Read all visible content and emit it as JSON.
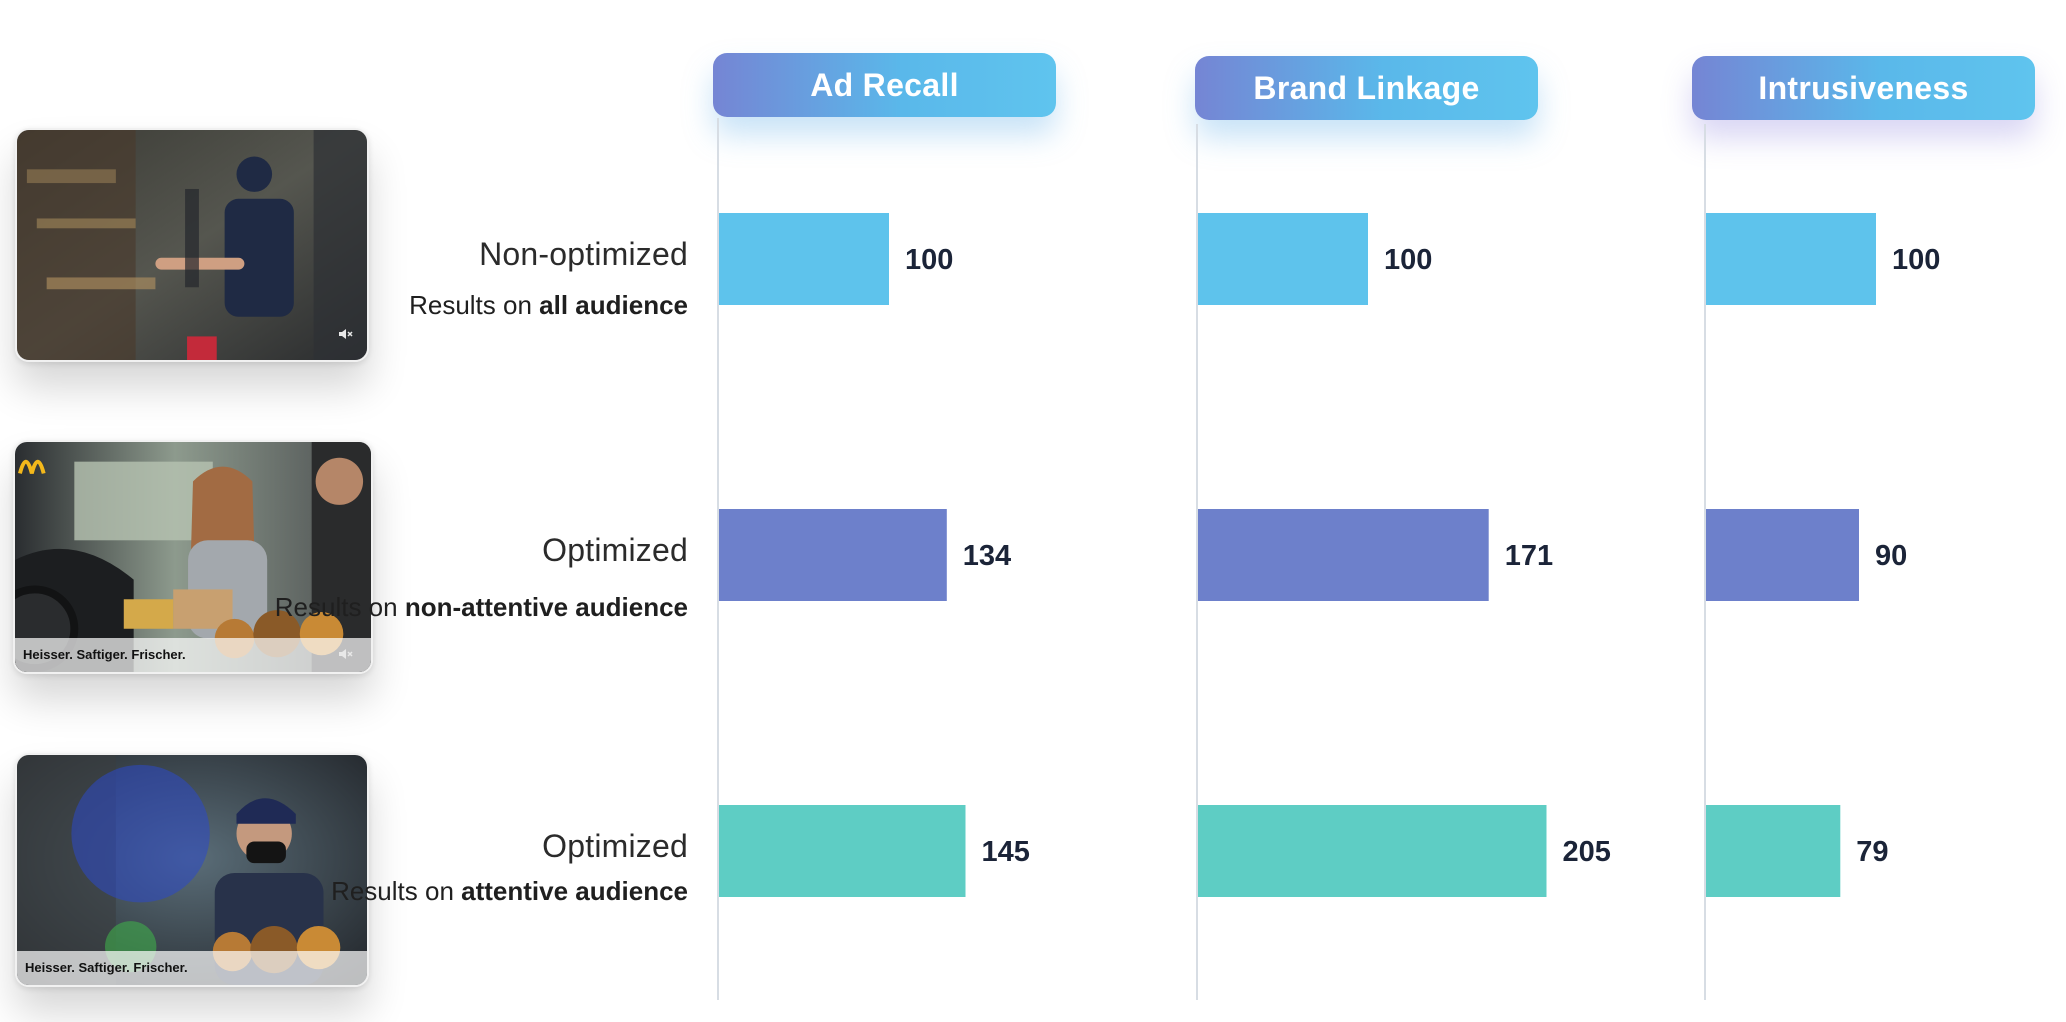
{
  "colors": {
    "non_optimized": "#5ec3ec",
    "optimized_non_attentive": "#6d80cb",
    "optimized_attentive": "#5ecdc4",
    "axis_line": "#d7dde4",
    "header_gradient_start": "#7585d4",
    "header_gradient_end": "#5fc4ee"
  },
  "thumbnails": [
    {
      "icon": "mute-icon"
    },
    {
      "caption": "Heisser. Saftiger. Frischer.",
      "icon": "mute-icon",
      "logo": "mcdonalds-logo"
    },
    {
      "caption": "Heisser. Saftiger. Frischer."
    }
  ],
  "rows": [
    {
      "title": "Non-optimized",
      "sub_plain": "Results on ",
      "sub_bold": "all audience"
    },
    {
      "title": "Optimized",
      "sub_plain": "Results on ",
      "sub_bold": "non-attentive audience"
    },
    {
      "title": "Optimized",
      "sub_plain": "Results on ",
      "sub_bold": "attentive audience"
    }
  ],
  "chart_data": {
    "type": "bar",
    "orientation": "horizontal",
    "categories": [
      "Non-optimized (all audience)",
      "Optimized (non-attentive audience)",
      "Optimized (attentive audience)"
    ],
    "panels": [
      {
        "title": "Ad Recall",
        "values": [
          100,
          134,
          145
        ]
      },
      {
        "title": "Brand Linkage",
        "values": [
          100,
          171,
          205
        ]
      },
      {
        "title": "Intrusiveness",
        "values": [
          100,
          90,
          79
        ]
      }
    ],
    "grid": false,
    "legend": "none"
  }
}
